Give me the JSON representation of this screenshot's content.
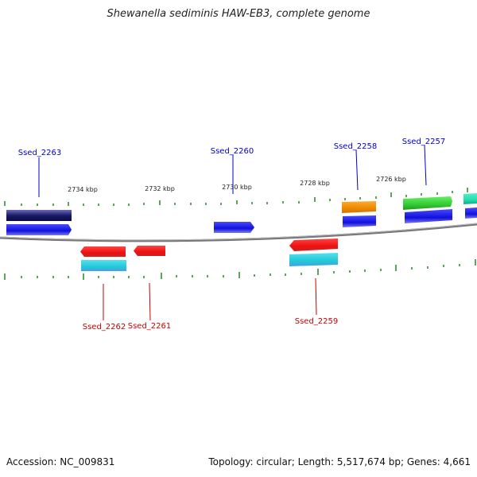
{
  "title": "Shewanella sediminis HAW-EB3, complete genome",
  "footer": {
    "accession": "Accession: NC_009831",
    "summary": "Topology: circular; Length: 5,517,674 bp; Genes: 4,661"
  },
  "colors": {
    "top_label": "#0000cc",
    "bottom_label": "#cc0000",
    "tick": "#228822",
    "backbone": "#888888"
  },
  "ruler": {
    "labels": [
      "2734 kbp",
      "2732 kbp",
      "2730 kbp",
      "2728 kbp",
      "2726 kbp"
    ]
  },
  "genes_top": [
    {
      "name": "Ssed_2263"
    },
    {
      "name": "Ssed_2260"
    },
    {
      "name": "Ssed_2258"
    },
    {
      "name": "Ssed_2257"
    }
  ],
  "genes_bottom": [
    {
      "name": "Ssed_2262"
    },
    {
      "name": "Ssed_2261"
    },
    {
      "name": "Ssed_2259"
    }
  ],
  "feature_colors": {
    "navy": "#1a1a66",
    "blue": "#1010dd",
    "red": "#ee1111",
    "cyan": "#22c8d8",
    "orange": "#ee8800",
    "green": "#33cc33",
    "teal": "#22ddaa"
  }
}
